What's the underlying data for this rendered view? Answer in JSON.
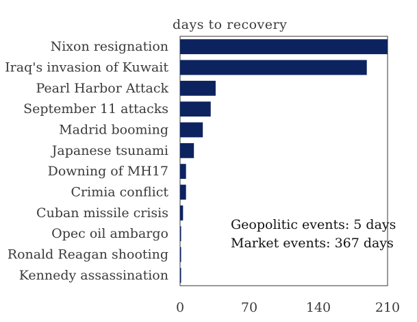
{
  "chart_data": {
    "type": "bar",
    "orientation": "horizontal",
    "title": "days to recovery",
    "categories": [
      "Nixon resignation",
      "Iraq's invasion of Kuwait",
      "Pearl Harbor Attack",
      "September 11 attacks",
      "Madrid booming",
      "Japanese tsunami",
      "Downing of MH17",
      "Crimia conflict",
      "Cuban missile crisis",
      "Opec oil ambargo",
      "Ronald Reagan shooting",
      "Kennedy assassination"
    ],
    "values": [
      210,
      189,
      36,
      31,
      23,
      14,
      6,
      6,
      3,
      1,
      1,
      1
    ],
    "xlim": [
      0,
      210
    ],
    "xticks": [
      0,
      70,
      140,
      210
    ],
    "xtick_labels": [
      "0",
      "70",
      "140",
      "210"
    ],
    "grid": false,
    "bar_color": "#0d2360",
    "annotations": [
      "Geopolitic events: 5 days",
      "Market events: 367 days"
    ]
  }
}
